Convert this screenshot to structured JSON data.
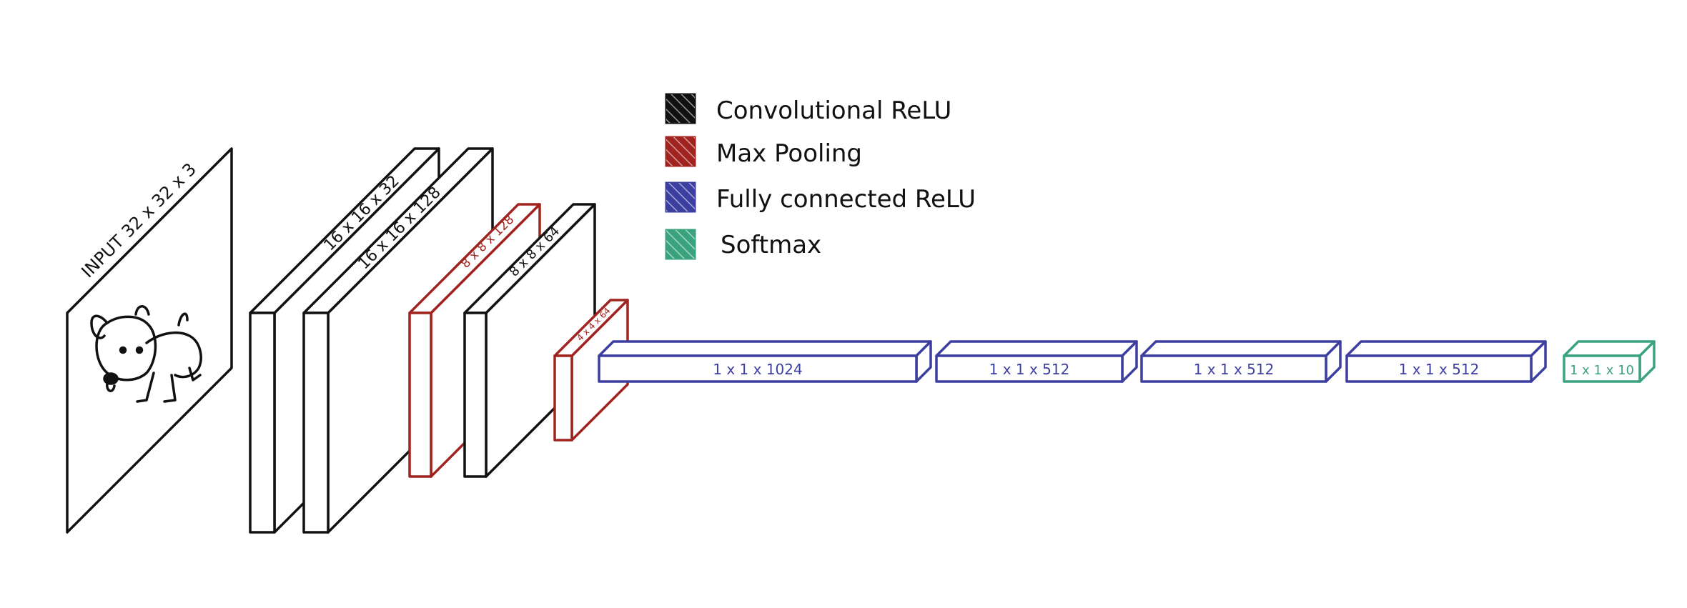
{
  "colors": {
    "conv": "#111111",
    "pool": "#a0231f",
    "fc": "#3c3fa0",
    "softmax": "#3aa37e"
  },
  "legend": {
    "items": [
      {
        "label": "Convolutional  ReLU",
        "color": "#111111"
      },
      {
        "label": "Max Pooling",
        "color": "#a0231f"
      },
      {
        "label": "Fully connected  ReLU",
        "color": "#3c3fa0"
      },
      {
        "label": "Softmax",
        "color": "#3aa37e"
      }
    ]
  },
  "layers": {
    "input": "INPUT  32 x 32 x 3",
    "conv1": "16 x 16 x 32",
    "conv2": "16 x 16 x 128",
    "pool1": "8 x 8 x 128",
    "conv3": "8 x 8 x 64",
    "pool2": "4 x 4 x 64",
    "fc1": "1 x 1 x 1024",
    "fc2": "1 x 1 x 512",
    "fc3": "1 x 1 x 512",
    "fc4": "1 x 1 x 512",
    "softmax": "1 x 1 x 10"
  },
  "icons": {
    "input_image": "dog-drawing-icon"
  }
}
